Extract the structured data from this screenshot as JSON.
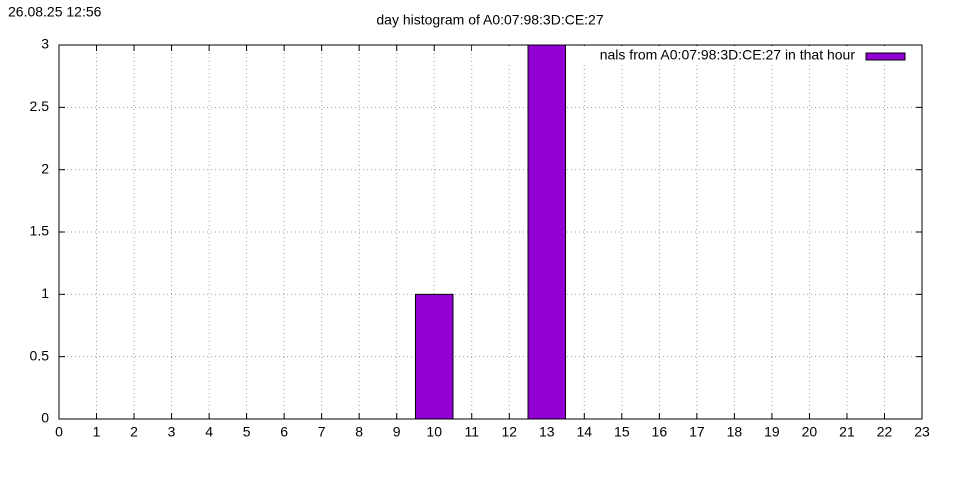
{
  "timestamp": "26.08.25 12:56",
  "chart_data": {
    "type": "bar",
    "title": "day histogram of A0:07:98:3D:CE:27",
    "x": [
      10,
      13
    ],
    "values": [
      1,
      3
    ],
    "color": "#9400d3",
    "legend": "nals from A0:07:98:3D:CE:27 in that hour",
    "legend_position": "top-right",
    "xlim": [
      0,
      23
    ],
    "xticks": [
      0,
      1,
      2,
      3,
      4,
      5,
      6,
      7,
      8,
      9,
      10,
      11,
      12,
      13,
      14,
      15,
      16,
      17,
      18,
      19,
      20,
      21,
      22,
      23
    ],
    "ylim": [
      0,
      3
    ],
    "yticks": [
      0,
      0.5,
      1,
      1.5,
      2,
      2.5,
      3
    ],
    "bar_width": 1,
    "grid": true
  }
}
